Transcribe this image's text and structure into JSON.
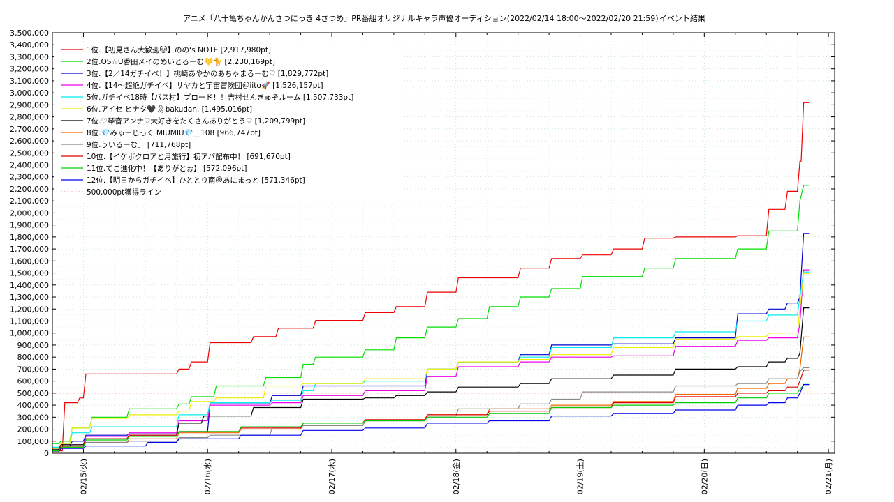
{
  "chart_data": {
    "type": "line",
    "title": "アニメ「八十亀ちゃんかんさつにっき 4さつめ」PR番組オリジナルキャラ声優オーディション(2022/02/14 18:00〜2022/02/20 21:59)",
    "subtitle": "イベント結果",
    "xlabel": "",
    "ylabel": "",
    "ylim": [
      0,
      3500000
    ],
    "xlim": [
      0,
      6.1
    ],
    "grid": true,
    "legend_position": "top-left",
    "x_ticks": [
      "02/15(火)",
      "02/16(水)",
      "02/17(木)",
      "02/18(金)",
      "02/19(土)",
      "02/20(日)",
      "02/21(月)"
    ],
    "x_tick_positions": [
      0.25,
      1.25,
      2.25,
      3.25,
      4.25,
      5.25,
      6.25
    ],
    "y_ticks": [
      "0",
      "100,000",
      "200,000",
      "300,000",
      "400,000",
      "500,000",
      "600,000",
      "700,000",
      "800,000",
      "900,000",
      "1,000,000",
      "1,100,000",
      "1,200,000",
      "1,300,000",
      "1,400,000",
      "1,500,000",
      "1,600,000",
      "1,700,000",
      "1,800,000",
      "1,900,000",
      "2,000,000",
      "2,100,000",
      "2,200,000",
      "2,300,000",
      "2,400,000",
      "2,500,000",
      "2,600,000",
      "2,700,000",
      "2,800,000",
      "2,900,000",
      "3,000,000",
      "3,100,000",
      "3,200,000",
      "3,300,000",
      "3,400,000",
      "3,500,000"
    ],
    "reference_line": {
      "name": "500,000pt獲得ライン",
      "value": 500000,
      "color": "#ff9999"
    },
    "series": [
      {
        "name": "1位.【初見さん大歓迎🐱】ののʻs NOTE [2,917,980pt]",
        "color": "#ee0000",
        "x": [
          0,
          0.08,
          0.1,
          0.2,
          0.22,
          0.25,
          0.27,
          1.0,
          1.02,
          1.1,
          1.12,
          1.25,
          1.27,
          1.6,
          1.62,
          1.8,
          1.82,
          2.1,
          2.12,
          2.5,
          2.52,
          2.75,
          2.77,
          3.0,
          3.02,
          3.25,
          3.27,
          3.75,
          3.77,
          4.0,
          4.02,
          4.25,
          4.27,
          4.5,
          4.52,
          4.75,
          4.77,
          5.0,
          5.02,
          5.5,
          5.52,
          5.75,
          5.77,
          5.9,
          5.92,
          6.0,
          6.02,
          6.03,
          6.05,
          6.1
        ],
        "y": [
          20000,
          20000,
          420000,
          420000,
          460000,
          460000,
          660000,
          660000,
          700000,
          700000,
          760000,
          760000,
          920000,
          920000,
          970000,
          970000,
          1040000,
          1040000,
          1105000,
          1105000,
          1170000,
          1170000,
          1220000,
          1220000,
          1340000,
          1340000,
          1460000,
          1460000,
          1540000,
          1540000,
          1620000,
          1620000,
          1650000,
          1650000,
          1700000,
          1700000,
          1790000,
          1790000,
          1800000,
          1800000,
          1810000,
          1810000,
          2030000,
          2030000,
          2180000,
          2180000,
          2430000,
          2430000,
          2917980,
          2917980
        ]
      },
      {
        "name": "2位.OS☆U香田メイのめいとるーむ💛🐈 [2,230,169pt]",
        "color": "#00dd00",
        "x": [
          0,
          0.05,
          0.07,
          0.14,
          0.16,
          0.3,
          0.32,
          0.6,
          0.62,
          1.0,
          1.02,
          1.1,
          1.12,
          1.3,
          1.32,
          1.7,
          1.72,
          2.0,
          2.02,
          2.1,
          2.12,
          2.5,
          2.52,
          2.75,
          2.77,
          3.0,
          3.02,
          3.25,
          3.27,
          3.5,
          3.52,
          3.75,
          3.77,
          4.0,
          4.02,
          4.25,
          4.27,
          4.75,
          4.77,
          5.0,
          5.02,
          5.5,
          5.52,
          5.75,
          5.77,
          6.0,
          6.02,
          6.05,
          6.1
        ],
        "y": [
          80000,
          80000,
          100000,
          100000,
          210000,
          210000,
          300000,
          300000,
          370000,
          370000,
          410000,
          410000,
          470000,
          470000,
          560000,
          560000,
          630000,
          630000,
          740000,
          740000,
          800000,
          800000,
          860000,
          860000,
          960000,
          960000,
          1050000,
          1050000,
          1120000,
          1120000,
          1220000,
          1220000,
          1300000,
          1300000,
          1370000,
          1370000,
          1470000,
          1470000,
          1540000,
          1540000,
          1620000,
          1620000,
          1700000,
          1700000,
          1850000,
          1850000,
          2100000,
          2230169,
          2230169
        ]
      },
      {
        "name": "3位.【2／14ガチイベ！】桃崎あやかのあちゃまるーむ♡ [1,829,772pt]",
        "color": "#0000cc",
        "x": [
          0,
          0.05,
          0.07,
          0.14,
          0.16,
          0.25,
          0.27,
          0.6,
          0.62,
          1.0,
          1.02,
          1.25,
          1.27,
          1.75,
          1.77,
          2.0,
          2.02,
          3.0,
          3.02,
          3.25,
          3.27,
          3.75,
          3.77,
          4.0,
          4.02,
          4.5,
          4.52,
          5.0,
          5.02,
          5.5,
          5.52,
          5.75,
          5.77,
          5.9,
          5.92,
          6.0,
          6.02,
          6.05,
          6.1
        ],
        "y": [
          40000,
          40000,
          60000,
          60000,
          100000,
          100000,
          150000,
          150000,
          160000,
          160000,
          180000,
          180000,
          410000,
          410000,
          480000,
          480000,
          560000,
          560000,
          700000,
          700000,
          760000,
          760000,
          820000,
          820000,
          900000,
          900000,
          910000,
          910000,
          960000,
          960000,
          1160000,
          1160000,
          1200000,
          1200000,
          1250000,
          1250000,
          1300000,
          1829772,
          1829772
        ]
      },
      {
        "name": "4位.【14〜超絶ガチイベ】サヤカと宇宙冒険団＠iito🚀 [1,526,157pt]",
        "color": "#ee00ee",
        "x": [
          0,
          0.05,
          0.07,
          0.25,
          0.27,
          0.6,
          0.62,
          1.0,
          1.02,
          1.25,
          1.27,
          1.75,
          1.77,
          2.0,
          2.02,
          2.5,
          2.52,
          3.0,
          3.02,
          3.25,
          3.27,
          3.75,
          3.77,
          4.0,
          4.02,
          4.5,
          4.52,
          5.0,
          5.02,
          5.5,
          5.52,
          5.75,
          5.77,
          6.0,
          6.02,
          6.05,
          6.1
        ],
        "y": [
          40000,
          40000,
          70000,
          70000,
          140000,
          140000,
          170000,
          170000,
          270000,
          270000,
          400000,
          400000,
          420000,
          420000,
          480000,
          480000,
          520000,
          520000,
          640000,
          640000,
          720000,
          720000,
          760000,
          760000,
          800000,
          800000,
          810000,
          810000,
          890000,
          890000,
          940000,
          940000,
          960000,
          960000,
          1080000,
          1526157,
          1526157
        ]
      },
      {
        "name": "5位.ガチイベ18時【バス村】ブロード！！吉村せんきゅそルーム [1,507,733pt]",
        "color": "#00eeee",
        "x": [
          0,
          0.05,
          0.07,
          0.14,
          0.16,
          0.3,
          0.32,
          1.0,
          1.02,
          1.25,
          1.27,
          1.75,
          1.77,
          2.0,
          2.02,
          2.1,
          2.12,
          2.5,
          2.52,
          3.0,
          3.02,
          3.25,
          3.27,
          3.75,
          3.77,
          4.0,
          4.02,
          4.5,
          4.52,
          5.0,
          5.02,
          5.5,
          5.52,
          5.75,
          5.77,
          6.0,
          6.02,
          6.05,
          6.1
        ],
        "y": [
          50000,
          50000,
          80000,
          80000,
          170000,
          170000,
          220000,
          220000,
          320000,
          320000,
          420000,
          420000,
          440000,
          440000,
          520000,
          520000,
          580000,
          580000,
          600000,
          600000,
          700000,
          700000,
          760000,
          760000,
          800000,
          800000,
          880000,
          880000,
          960000,
          960000,
          1010000,
          1010000,
          1100000,
          1100000,
          1150000,
          1150000,
          1300000,
          1507733,
          1507733
        ]
      },
      {
        "name": "6位.アイセ ヒナタ🖤🎗bakudan. [1,495,016pt]",
        "color": "#eeee00",
        "x": [
          0,
          0.05,
          0.07,
          0.14,
          0.16,
          0.3,
          0.32,
          0.6,
          0.62,
          1.0,
          1.02,
          1.1,
          1.12,
          1.3,
          1.32,
          1.7,
          1.72,
          2.0,
          2.02,
          2.5,
          2.52,
          3.0,
          3.02,
          3.25,
          3.27,
          3.75,
          3.77,
          4.0,
          4.02,
          4.5,
          4.52,
          5.0,
          5.02,
          5.5,
          5.52,
          5.75,
          5.77,
          6.0,
          6.02,
          6.05,
          6.1
        ],
        "y": [
          40000,
          40000,
          80000,
          80000,
          210000,
          210000,
          290000,
          290000,
          320000,
          320000,
          350000,
          350000,
          430000,
          430000,
          460000,
          460000,
          560000,
          560000,
          580000,
          580000,
          620000,
          620000,
          700000,
          700000,
          760000,
          760000,
          780000,
          780000,
          820000,
          820000,
          880000,
          880000,
          950000,
          950000,
          970000,
          970000,
          1000000,
          1000000,
          1200000,
          1495016,
          1495016
        ]
      },
      {
        "name": "7位.♡琴音アンナ♡大好きをたくさんありがとう♡ [1,209,799pt]",
        "color": "#000000",
        "x": [
          0,
          0.05,
          0.07,
          0.25,
          0.27,
          0.6,
          0.62,
          1.0,
          1.02,
          1.2,
          1.22,
          1.6,
          1.62,
          2.0,
          2.02,
          2.5,
          2.52,
          2.75,
          2.77,
          3.0,
          3.02,
          3.25,
          3.27,
          3.75,
          3.77,
          4.0,
          4.02,
          4.5,
          4.52,
          5.0,
          5.02,
          5.5,
          5.52,
          5.75,
          5.77,
          5.9,
          5.92,
          6.0,
          6.02,
          6.05,
          6.1
        ],
        "y": [
          30000,
          30000,
          70000,
          70000,
          120000,
          120000,
          150000,
          150000,
          250000,
          250000,
          310000,
          310000,
          380000,
          380000,
          450000,
          450000,
          460000,
          460000,
          480000,
          480000,
          510000,
          510000,
          550000,
          550000,
          580000,
          580000,
          620000,
          620000,
          650000,
          650000,
          700000,
          700000,
          720000,
          720000,
          760000,
          760000,
          790000,
          790000,
          830000,
          1209799,
          1209799
        ]
      },
      {
        "name": "8位.💎みゅーじっく MIUMIU💎__108 [966,747pt]",
        "color": "#ee6600",
        "x": [
          0,
          0.05,
          0.07,
          0.25,
          0.27,
          0.6,
          0.62,
          1.0,
          1.02,
          1.5,
          1.52,
          2.0,
          2.02,
          2.5,
          2.52,
          3.0,
          3.02,
          3.5,
          3.52,
          4.0,
          4.02,
          4.5,
          4.52,
          5.0,
          5.02,
          5.5,
          5.52,
          5.75,
          5.77,
          5.9,
          5.92,
          6.0,
          6.02,
          6.05,
          6.1
        ],
        "y": [
          20000,
          20000,
          60000,
          60000,
          90000,
          90000,
          120000,
          120000,
          170000,
          170000,
          200000,
          200000,
          250000,
          250000,
          270000,
          270000,
          320000,
          320000,
          370000,
          370000,
          400000,
          400000,
          430000,
          430000,
          490000,
          490000,
          540000,
          540000,
          580000,
          580000,
          620000,
          620000,
          700000,
          966747,
          966747
        ]
      },
      {
        "name": "9位.ういるーむ。 [711,768pt]",
        "color": "#888888",
        "x": [
          0,
          0.05,
          0.07,
          0.25,
          0.27,
          0.6,
          0.62,
          1.0,
          1.02,
          1.25,
          1.27,
          1.75,
          1.77,
          2.0,
          2.02,
          2.5,
          2.52,
          3.0,
          3.02,
          3.25,
          3.27,
          3.75,
          3.77,
          4.0,
          4.02,
          4.25,
          4.27,
          5.0,
          5.02,
          5.5,
          5.52,
          5.75,
          5.77,
          6.0,
          6.02,
          6.05,
          6.1
        ],
        "y": [
          20000,
          20000,
          50000,
          50000,
          90000,
          90000,
          100000,
          100000,
          130000,
          130000,
          150000,
          150000,
          210000,
          210000,
          230000,
          230000,
          270000,
          270000,
          310000,
          310000,
          370000,
          370000,
          410000,
          410000,
          450000,
          450000,
          510000,
          510000,
          560000,
          560000,
          580000,
          580000,
          620000,
          620000,
          680000,
          711768,
          711768
        ]
      },
      {
        "name": "10位.【イケボクロアと月旅行】初アバ配布中！ [691,670pt]",
        "color": "#dd0000",
        "x": [
          0,
          0.05,
          0.07,
          0.25,
          0.27,
          0.6,
          0.62,
          1.0,
          1.02,
          1.5,
          1.52,
          2.0,
          2.02,
          2.5,
          2.52,
          3.0,
          3.02,
          3.5,
          3.52,
          4.0,
          4.02,
          4.5,
          4.52,
          5.0,
          5.02,
          5.5,
          5.52,
          5.75,
          5.77,
          5.9,
          5.92,
          6.0,
          6.02,
          6.05,
          6.1
        ],
        "y": [
          20000,
          20000,
          60000,
          60000,
          120000,
          120000,
          150000,
          150000,
          180000,
          180000,
          210000,
          210000,
          250000,
          250000,
          280000,
          280000,
          320000,
          320000,
          350000,
          350000,
          380000,
          380000,
          420000,
          420000,
          470000,
          470000,
          500000,
          500000,
          520000,
          520000,
          550000,
          550000,
          600000,
          691670,
          691670
        ]
      },
      {
        "name": "11位.てこ進化中！【ありがとぉ】 [572,096pt]",
        "color": "#00cc00",
        "x": [
          0,
          0.05,
          0.07,
          0.25,
          0.27,
          0.6,
          0.62,
          1.0,
          1.02,
          1.5,
          1.52,
          2.0,
          2.02,
          2.5,
          2.52,
          3.0,
          3.02,
          3.5,
          3.52,
          4.0,
          4.02,
          4.5,
          4.52,
          5.0,
          5.02,
          5.5,
          5.52,
          5.75,
          5.77,
          6.0,
          6.02,
          6.05,
          6.1
        ],
        "y": [
          20000,
          20000,
          50000,
          50000,
          110000,
          110000,
          140000,
          140000,
          180000,
          180000,
          220000,
          220000,
          250000,
          250000,
          270000,
          270000,
          300000,
          300000,
          330000,
          330000,
          380000,
          380000,
          400000,
          400000,
          420000,
          420000,
          460000,
          460000,
          500000,
          500000,
          530000,
          572096,
          572096
        ]
      },
      {
        "name": "12位.【明日からガチイベ】ひととり南＠あにまっと [571,346pt]",
        "color": "#0000ee",
        "x": [
          0,
          0.05,
          0.07,
          0.25,
          0.27,
          0.75,
          0.77,
          1.0,
          1.02,
          1.5,
          1.52,
          2.0,
          2.02,
          2.5,
          2.52,
          3.0,
          3.02,
          3.5,
          3.52,
          4.0,
          4.02,
          4.5,
          4.52,
          5.0,
          5.02,
          5.5,
          5.52,
          5.75,
          5.77,
          5.9,
          5.92,
          6.0,
          6.02,
          6.05,
          6.1
        ],
        "y": [
          10000,
          10000,
          40000,
          40000,
          60000,
          60000,
          90000,
          90000,
          120000,
          120000,
          150000,
          150000,
          190000,
          190000,
          210000,
          210000,
          250000,
          250000,
          270000,
          270000,
          310000,
          310000,
          330000,
          330000,
          360000,
          360000,
          400000,
          400000,
          420000,
          420000,
          460000,
          460000,
          500000,
          571346,
          571346
        ]
      }
    ]
  }
}
